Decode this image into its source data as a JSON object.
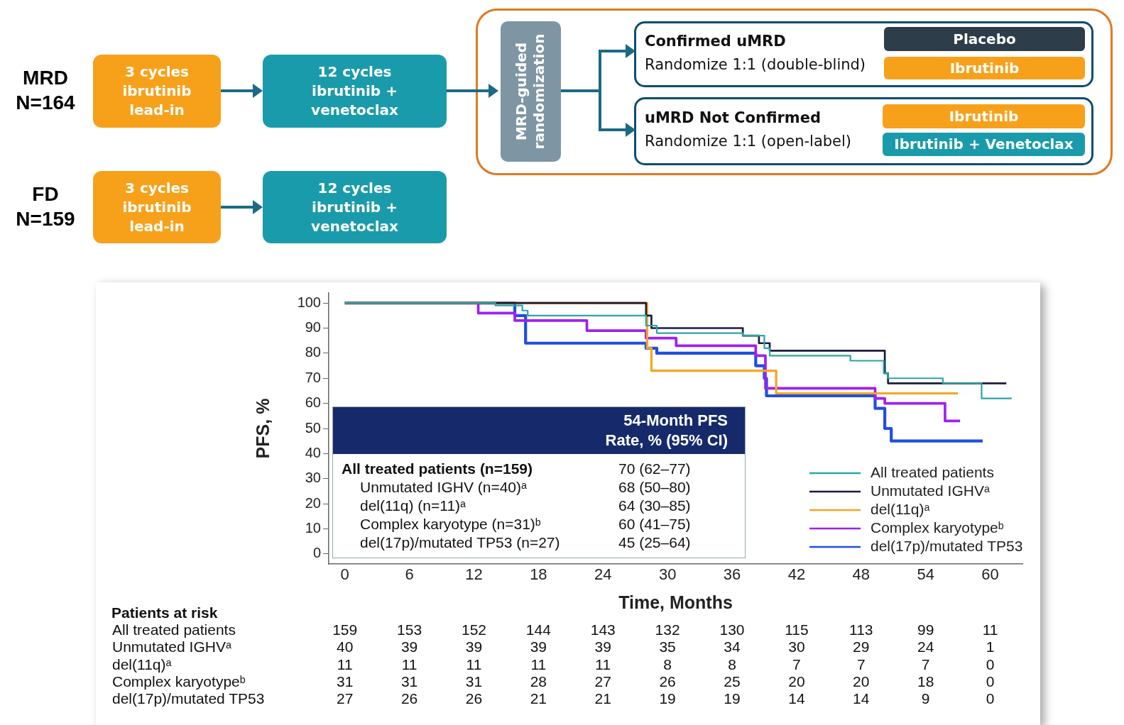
{
  "chart_data": {
    "type": "step",
    "xlabel": "Time, Months",
    "ylabel": "PFS, %",
    "xlim": [
      -1.5,
      63
    ],
    "xticks": [
      0,
      6,
      12,
      18,
      24,
      30,
      36,
      42,
      48,
      54,
      60
    ],
    "ylim": [
      -4,
      104
    ],
    "yticks": [
      0,
      10,
      20,
      30,
      40,
      50,
      60,
      70,
      80,
      90,
      100
    ],
    "legend": "bottom right",
    "series": [
      {
        "name": "All treated patients",
        "color": "#2ca5a8",
        "x": [
          0,
          14,
          16.5,
          17,
          28,
          29,
          37,
          39,
          39.5,
          47,
          50.1,
          50.5,
          55.6,
          59.2,
          62
        ],
        "values": [
          100,
          99,
          97,
          95,
          91,
          88,
          87,
          82,
          79,
          77,
          72,
          70,
          68,
          62,
          62
        ]
      },
      {
        "name": "Unmutated IGHVᵃ",
        "color": "#1c1c3a",
        "x": [
          0,
          28,
          28.5,
          37,
          38.5,
          39.5,
          50.2,
          50.5,
          61.5
        ],
        "values": [
          100,
          95,
          90,
          87,
          84,
          81,
          72,
          68,
          68
        ]
      },
      {
        "name": "del(11q)ᵃ",
        "color": "#f5a623",
        "x": [
          0,
          28.1,
          28.5,
          40.1,
          57
        ],
        "values": [
          100,
          82,
          73,
          64,
          64
        ]
      },
      {
        "name": "Complex karyotypeᵇ",
        "color": "#a020f0",
        "x": [
          0,
          12.4,
          15.8,
          22.5,
          28,
          30.8,
          38.2,
          39.1,
          49.3,
          50.2,
          55.8,
          57.2
        ],
        "values": [
          100,
          96,
          93,
          89,
          86,
          83,
          79,
          66,
          62,
          60,
          53,
          53
        ]
      },
      {
        "name": "del(17p)/mutated TP53",
        "color": "#1f4fe0",
        "x": [
          0,
          15.8,
          16.8,
          28,
          29,
          38.2,
          39,
          39.2,
          49.3,
          50.2,
          50.8,
          59.3
        ],
        "values": [
          100,
          95,
          84,
          82,
          80,
          75,
          70,
          63,
          58,
          50,
          45,
          45
        ]
      }
    ],
    "annotations": [
      "MRD\nN=164",
      "FD\nN=159",
      "3 cycles\nibrutinib\nlead-in",
      "12 cycles\nibrutinib +\nvenetoclax",
      "3 cycles\nibrutinib\nlead-in",
      "12 cycles\nibrutinib +\nvenetoclax",
      "MRD-guided\nrandomization",
      "Confirmed uMRD",
      "Randomize 1:1 (double-blind)",
      "Placebo",
      "Ibrutinib",
      "uMRD Not Confirmed",
      "Randomize 1:1 (open-label)",
      "Ibrutinib",
      "Ibrutinib + Venetoclax",
      "54-Month PFS\nRate, % (95% CI)",
      "All treated patients (n=159)",
      "70 (62–77)",
      "Unmutated IGHV (n=40)ᵃ",
      "68 (50–80)",
      "del(11q) (n=11)ᵃ",
      "64 (30–85)",
      "Complex karyotype (n=31)ᵇ",
      "60 (41–75)",
      "del(17p)/mutated TP53 (n=27)",
      "45 (25–64)",
      "Patients at risk",
      "All treated patients",
      "159",
      "153",
      "152",
      "144",
      "143",
      "132",
      "130",
      "115",
      "113",
      "99",
      "11",
      "Unmutated IGHVᵃ",
      "40",
      "39",
      "39",
      "39",
      "39",
      "35",
      "34",
      "30",
      "29",
      "24",
      "1",
      "del(11q)ᵃ",
      "11",
      "11",
      "11",
      "11",
      "11",
      "8",
      "8",
      "7",
      "7",
      "7",
      "0",
      "Complex karyotypeᵇ",
      "31",
      "31",
      "31",
      "28",
      "27",
      "26",
      "25",
      "20",
      "20",
      "18",
      "0",
      "del(17p)/mutated TP53",
      "27",
      "26",
      "26",
      "21",
      "21",
      "19",
      "19",
      "14",
      "14",
      "9",
      "0"
    ]
  }
}
